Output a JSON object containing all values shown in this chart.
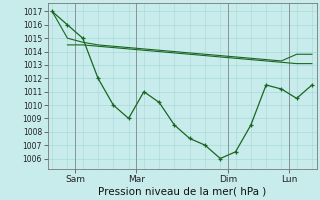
{
  "xlabel": "Pression niveau de la mer( hPa )",
  "bg_color": "#c8ecec",
  "grid_color": "#a8d8d8",
  "line_color": "#1a6620",
  "yticks": [
    1006,
    1007,
    1008,
    1009,
    1010,
    1011,
    1012,
    1013,
    1014,
    1015,
    1016,
    1017
  ],
  "ylim": [
    1005.2,
    1017.6
  ],
  "xlim": [
    -0.3,
    17.3
  ],
  "x_tick_labels": [
    "Sam",
    "Mar",
    "Dim",
    "Lun"
  ],
  "x_tick_pos": [
    1.5,
    5.5,
    11.5,
    15.5
  ],
  "ref_line1_x": [
    0,
    1,
    2,
    3,
    4,
    5,
    6,
    7,
    8,
    9,
    10,
    11,
    12,
    13,
    14,
    15,
    16,
    17
  ],
  "ref_line1_y": [
    1017.0,
    1015.0,
    1014.7,
    1014.5,
    1014.4,
    1014.3,
    1014.2,
    1014.1,
    1014.0,
    1013.9,
    1013.8,
    1013.7,
    1013.6,
    1013.5,
    1013.4,
    1013.3,
    1013.8,
    1013.8
  ],
  "ref_line2_x": [
    1,
    2,
    3,
    4,
    5,
    6,
    7,
    8,
    9,
    10,
    11,
    12,
    13,
    14,
    15,
    16,
    17
  ],
  "ref_line2_y": [
    1014.5,
    1014.5,
    1014.4,
    1014.3,
    1014.2,
    1014.1,
    1014.0,
    1013.9,
    1013.8,
    1013.7,
    1013.6,
    1013.5,
    1013.4,
    1013.3,
    1013.2,
    1013.1,
    1013.1
  ],
  "main_x": [
    0,
    1,
    2,
    3,
    4,
    5,
    6,
    7,
    8,
    9,
    10,
    11,
    12,
    13,
    14,
    15,
    16,
    17
  ],
  "main_y": [
    1017,
    1016,
    1015,
    1012,
    1010,
    1009,
    1011,
    1010.2,
    1008.5,
    1007.5,
    1007,
    1006,
    1006.5,
    1008.5,
    1011.5,
    1011.2,
    1010.5,
    1011.5
  ],
  "xlabel_fontsize": 7.5,
  "ytick_fontsize": 5.5,
  "xtick_fontsize": 6.5
}
